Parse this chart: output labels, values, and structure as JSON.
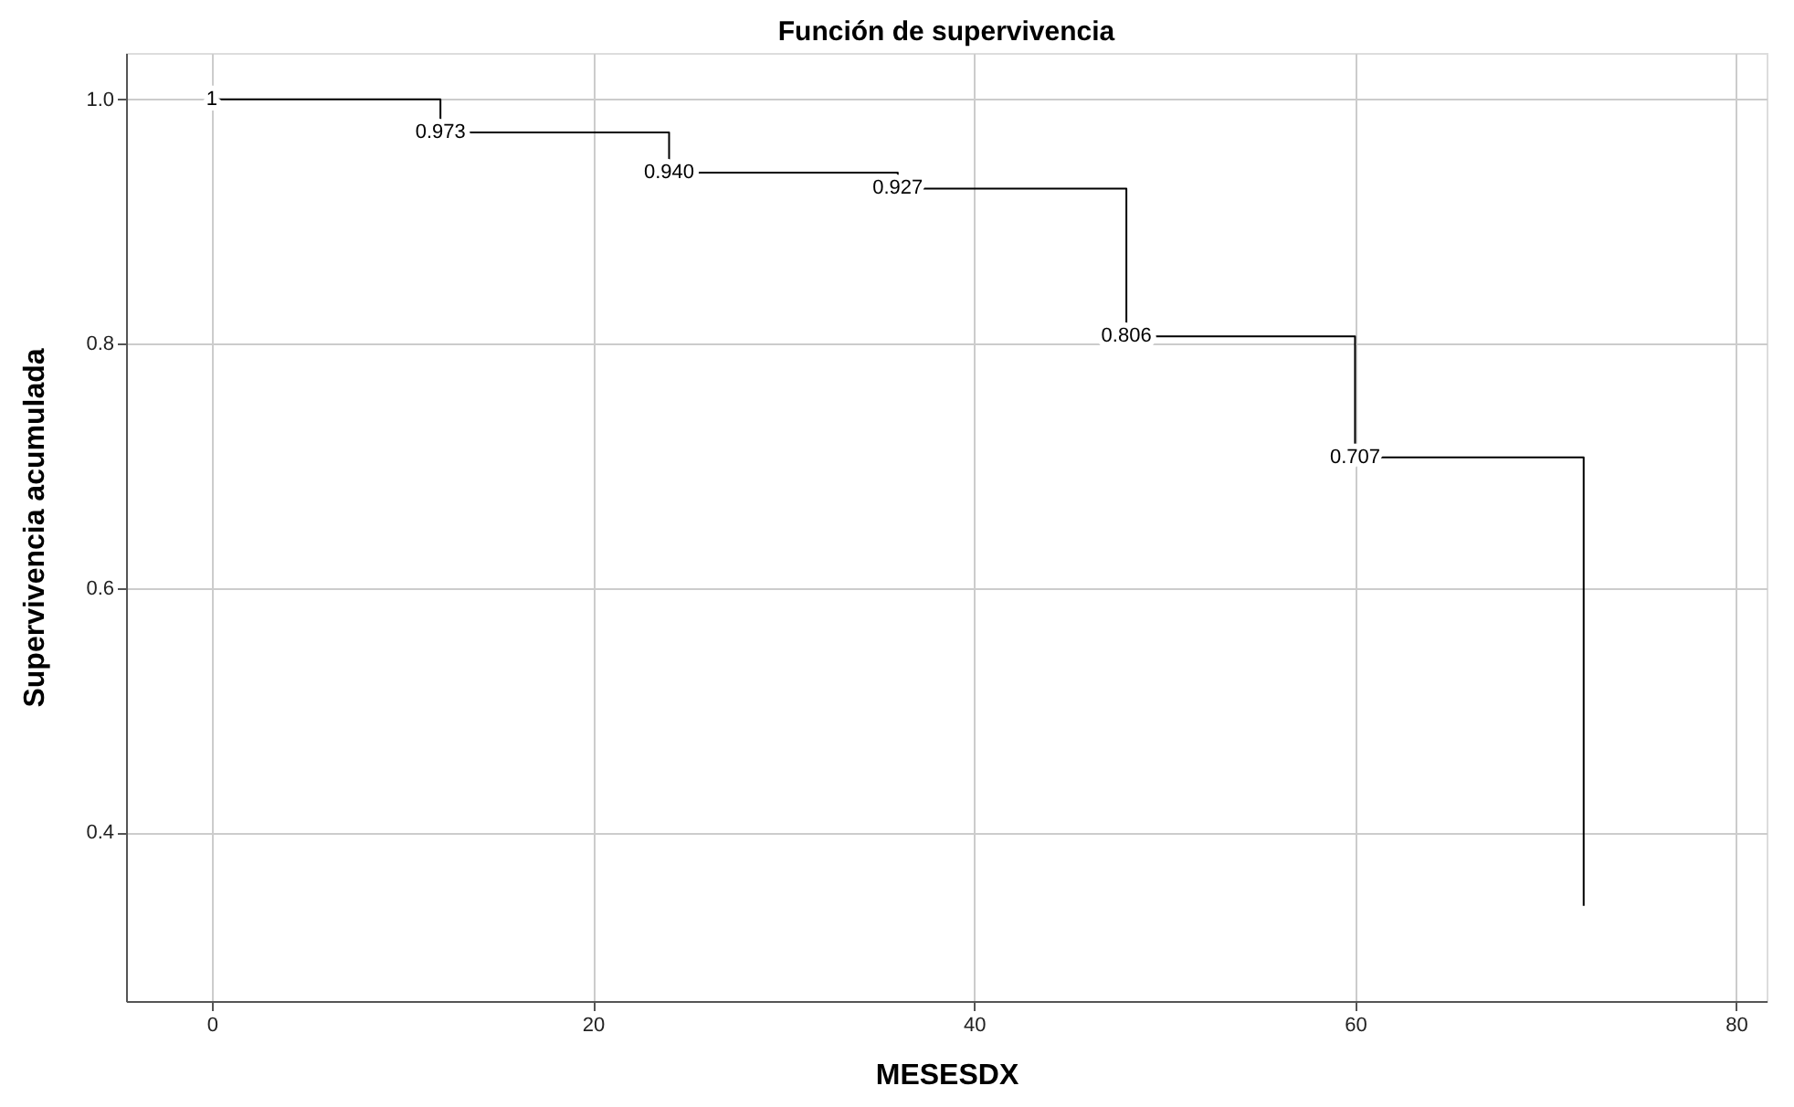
{
  "chart_data": {
    "type": "step",
    "title": "Función de supervivencia",
    "xlabel": "MESESDX",
    "ylabel": "Supervivencia acumulada",
    "x": [
      0,
      12,
      24,
      36,
      48,
      60,
      72
    ],
    "values": [
      1,
      0.973,
      0.94,
      0.927,
      0.806,
      0.707,
      0.34
    ],
    "value_labels": [
      "1",
      "0.973",
      "0.940",
      "0.927",
      "0.806",
      "0.707",
      null
    ],
    "color": "#000000",
    "xlim": [
      -4.5,
      81.6
    ],
    "xticks": [
      0,
      20,
      40,
      60,
      80
    ],
    "ylim": [
      0.262,
      1.038
    ],
    "yticks": [
      {
        "value": 0.4,
        "label": "0.4"
      },
      {
        "value": 0.6,
        "label": "0.6"
      },
      {
        "value": 0.8,
        "label": "0.8"
      },
      {
        "value": 1.0,
        "label": "1.0"
      }
    ],
    "grid": true
  }
}
